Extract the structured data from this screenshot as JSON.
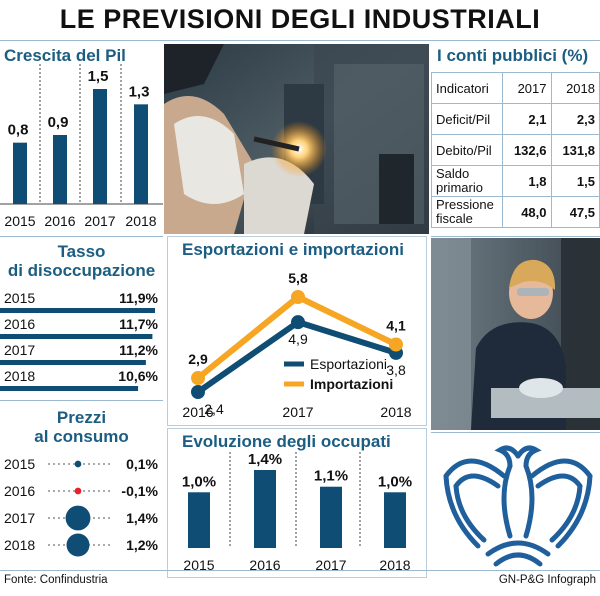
{
  "title": "LE PREVISIONI DEGLI INDUSTRIALI",
  "colors": {
    "dark": "#0f4d74",
    "orange": "#f6a623",
    "accent_title": "#1c5d82",
    "red": "#e8202a",
    "rule": "#9bb9cf"
  },
  "crescita": {
    "title": "Crescita del Pil"
  },
  "conti": {
    "title": "I conti pubblici (%)",
    "header": [
      "Indicatori",
      "2017",
      "2018"
    ],
    "rows": [
      {
        "label": "Deficit/Pil",
        "v2017": "2,1",
        "v2018": "2,3"
      },
      {
        "label": "Debito/Pil",
        "v2017": "132,6",
        "v2018": "131,8"
      },
      {
        "label": "Saldo primario",
        "v2017": "1,8",
        "v2018": "1,5"
      },
      {
        "label": "Pressione fiscale",
        "v2017": "48,0",
        "v2018": "47,5"
      }
    ]
  },
  "disoccupazione": {
    "title_line1": "Tasso",
    "title_line2": "di disoccupazione"
  },
  "prezzi": {
    "title_line1": "Prezzi",
    "title_line2": "al consumo"
  },
  "esportazioni": {
    "title": "Esportazioni e importazioni"
  },
  "occupati": {
    "title": "Evoluzione degli occupati"
  },
  "footer": {
    "source": "Fonte: Confindustria",
    "credit": "GN-P&G Infograph"
  },
  "chart_data": [
    {
      "id": "crescita",
      "type": "bar",
      "title": "Crescita del Pil",
      "categories": [
        "2015",
        "2016",
        "2017",
        "2018"
      ],
      "values": [
        0.8,
        0.9,
        1.5,
        1.3
      ],
      "labels": [
        "0,8",
        "0,9",
        "1,5",
        "1,3"
      ]
    },
    {
      "id": "disoccupazione",
      "type": "bar",
      "orientation": "horizontal",
      "title": "Tasso di disoccupazione",
      "categories": [
        "2015",
        "2016",
        "2017",
        "2018"
      ],
      "values": [
        11.9,
        11.7,
        11.2,
        10.6
      ],
      "labels": [
        "11,9%",
        "11,7%",
        "11,2%",
        "10,6%"
      ]
    },
    {
      "id": "prezzi",
      "type": "scatter",
      "title": "Prezzi al consumo",
      "categories": [
        "2015",
        "2016",
        "2017",
        "2018"
      ],
      "values": [
        0.1,
        -0.1,
        1.4,
        1.2
      ],
      "labels": [
        "0,1%",
        "-0,1%",
        "1,4%",
        "1,2%"
      ]
    },
    {
      "id": "esportazioni",
      "type": "line",
      "title": "Esportazioni e importazioni",
      "x": [
        "2016",
        "2017",
        "2018"
      ],
      "series": [
        {
          "name": "Esportazioni",
          "values": [
            2.4,
            4.9,
            3.8
          ],
          "labels": [
            "2,4",
            "4,9",
            "3,8"
          ],
          "color": "#0f4d74"
        },
        {
          "name": "Importazioni",
          "values": [
            2.9,
            5.8,
            4.1
          ],
          "labels": [
            "2,9",
            "5,8",
            "4,1"
          ],
          "color": "#f6a623"
        }
      ],
      "legend": "bottom-right"
    },
    {
      "id": "occupati",
      "type": "bar",
      "title": "Evoluzione degli occupati",
      "categories": [
        "2015",
        "2016",
        "2017",
        "2018"
      ],
      "values": [
        1.0,
        1.4,
        1.1,
        1.0
      ],
      "labels": [
        "1,0%",
        "1,4%",
        "1,1%",
        "1,0%"
      ]
    }
  ]
}
